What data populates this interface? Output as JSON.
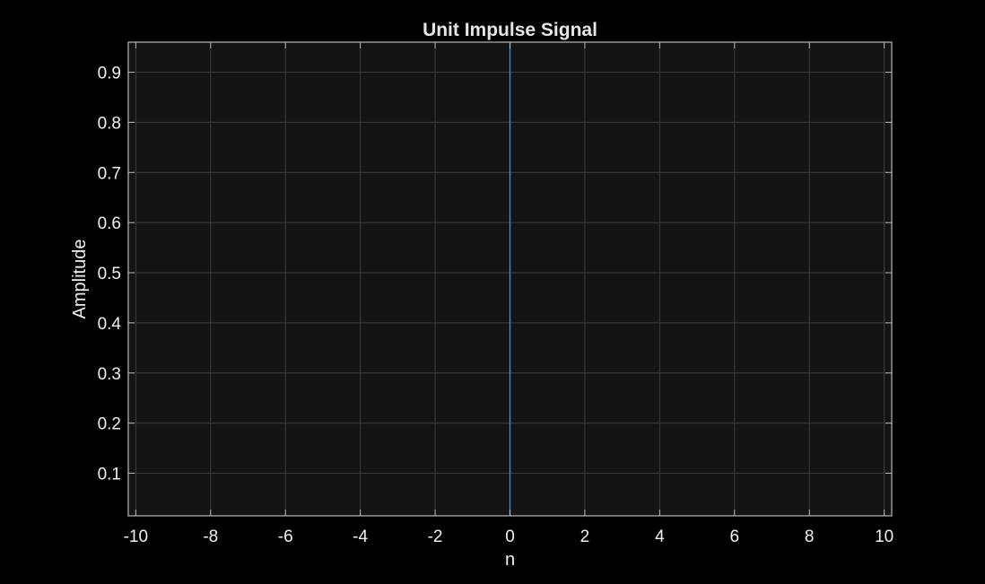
{
  "chart_data": {
    "type": "line",
    "title": "Unit Impulse Signal",
    "xlabel": "n",
    "ylabel": "Amplitude",
    "xlim": [
      -10.2,
      10.2
    ],
    "ylim": [
      0.015,
      0.96
    ],
    "xticks": [
      "-10",
      "-8",
      "-6",
      "-4",
      "-2",
      "0",
      "2",
      "4",
      "6",
      "8",
      "10"
    ],
    "yticks": [
      "0.1",
      "0.2",
      "0.3",
      "0.4",
      "0.5",
      "0.6",
      "0.7",
      "0.8",
      "0.9"
    ],
    "grid": true,
    "series": [
      {
        "x": [
          0,
          0
        ],
        "values": [
          0.015,
          0.96
        ]
      }
    ]
  },
  "colors": {
    "background": "#000000",
    "axes_background": "#141414",
    "grid": "#3c3c3c",
    "axis": "#b8b8b8",
    "text": "#f0f0f0",
    "series": "#3f8fd6"
  }
}
